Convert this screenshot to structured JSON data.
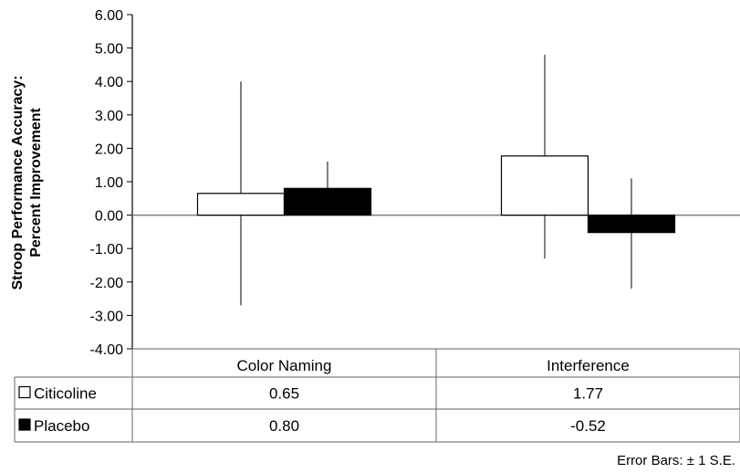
{
  "chart_data": {
    "type": "bar",
    "ylabel_line1": "Stroop Performance Accuracy:",
    "ylabel_line2": "Percent Improvement",
    "ylim": [
      -4,
      6
    ],
    "yticks": [
      "6.00",
      "5.00",
      "4.00",
      "3.00",
      "2.00",
      "1.00",
      "0.00",
      "-1.00",
      "-2.00",
      "-3.00",
      "-4.00"
    ],
    "categories": [
      "Color Naming",
      "Interference"
    ],
    "series": [
      {
        "name": "Citicoline",
        "values": [
          0.65,
          1.77
        ],
        "value_labels": [
          "0.65",
          "1.77"
        ],
        "err_low": [
          -2.7,
          -1.3
        ],
        "err_high": [
          4.0,
          4.8
        ],
        "fill": "#ffffff"
      },
      {
        "name": "Placebo",
        "values": [
          0.8,
          -0.52
        ],
        "value_labels": [
          "0.80",
          "-0.52"
        ],
        "err_low": [
          0.0,
          -2.2
        ],
        "err_high": [
          1.6,
          1.1
        ],
        "fill": "#000000"
      }
    ],
    "grid": false,
    "legend": "data-table",
    "note": "Error Bars: ± 1 S.E."
  }
}
